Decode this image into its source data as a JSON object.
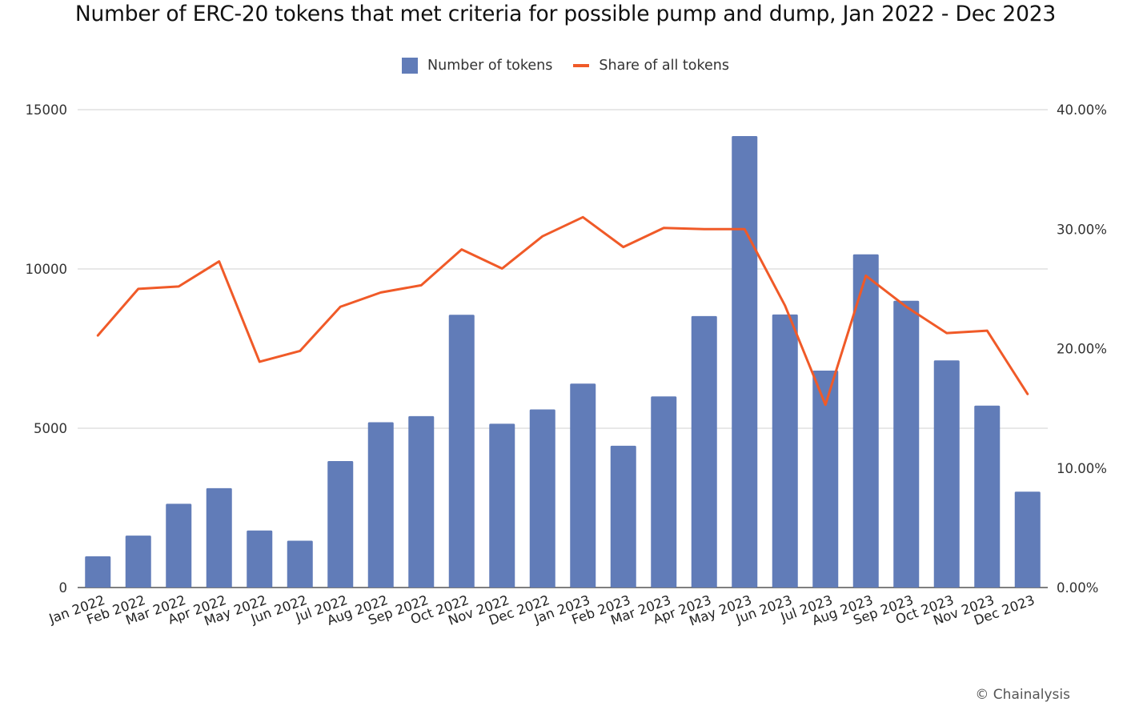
{
  "chart_data": {
    "type": "bar",
    "title": "Number of ERC-20 tokens that met criteria for possible pump and dump, Jan 2022 - Dec 2023",
    "categories": [
      "Jan 2022",
      "Feb 2022",
      "Mar 2022",
      "Apr 2022",
      "May 2022",
      "Jun 2022",
      "Jul 2022",
      "Aug 2022",
      "Sep 2022",
      "Oct 2022",
      "Nov 2022",
      "Dec 2022",
      "Jan 2023",
      "Feb 2023",
      "Mar 2023",
      "Apr 2023",
      "May 2023",
      "Jun 2023",
      "Jul 2023",
      "Aug 2023",
      "Sep 2023",
      "Oct 2023",
      "Nov 2023",
      "Dec 2023"
    ],
    "series": [
      {
        "name": "Number of tokens",
        "type": "bar",
        "axis": "left",
        "color": "#617cb8",
        "values": [
          980,
          1630,
          2630,
          3120,
          1790,
          1470,
          3970,
          5190,
          5380,
          8560,
          5140,
          5590,
          6400,
          4450,
          6000,
          8520,
          14170,
          8570,
          6810,
          10460,
          9000,
          7130,
          5710,
          3010
        ]
      },
      {
        "name": "Share of all tokens",
        "type": "line",
        "axis": "right",
        "color": "#f05a28",
        "values": [
          21.1,
          25.0,
          25.2,
          27.3,
          18.9,
          19.8,
          23.5,
          24.7,
          25.3,
          28.3,
          26.7,
          29.4,
          31.0,
          28.5,
          30.1,
          30.0,
          30.0,
          23.6,
          15.3,
          26.1,
          23.5,
          21.3,
          21.5,
          16.2
        ]
      }
    ],
    "y_left": {
      "min": 0,
      "max": 15000,
      "ticks": [
        "0",
        "5000",
        "10000",
        "15000"
      ],
      "tick_values": [
        0,
        5000,
        10000,
        15000
      ]
    },
    "y_right": {
      "min": 0,
      "max": 40,
      "ticks": [
        "0.00%",
        "10.00%",
        "20.00%",
        "30.00%",
        "40.00%"
      ],
      "tick_values": [
        0,
        10,
        20,
        30,
        40
      ]
    },
    "grid": true,
    "legend_position": "top-center",
    "xlabel": "",
    "ylabel": ""
  },
  "credit": "© Chainalysis"
}
